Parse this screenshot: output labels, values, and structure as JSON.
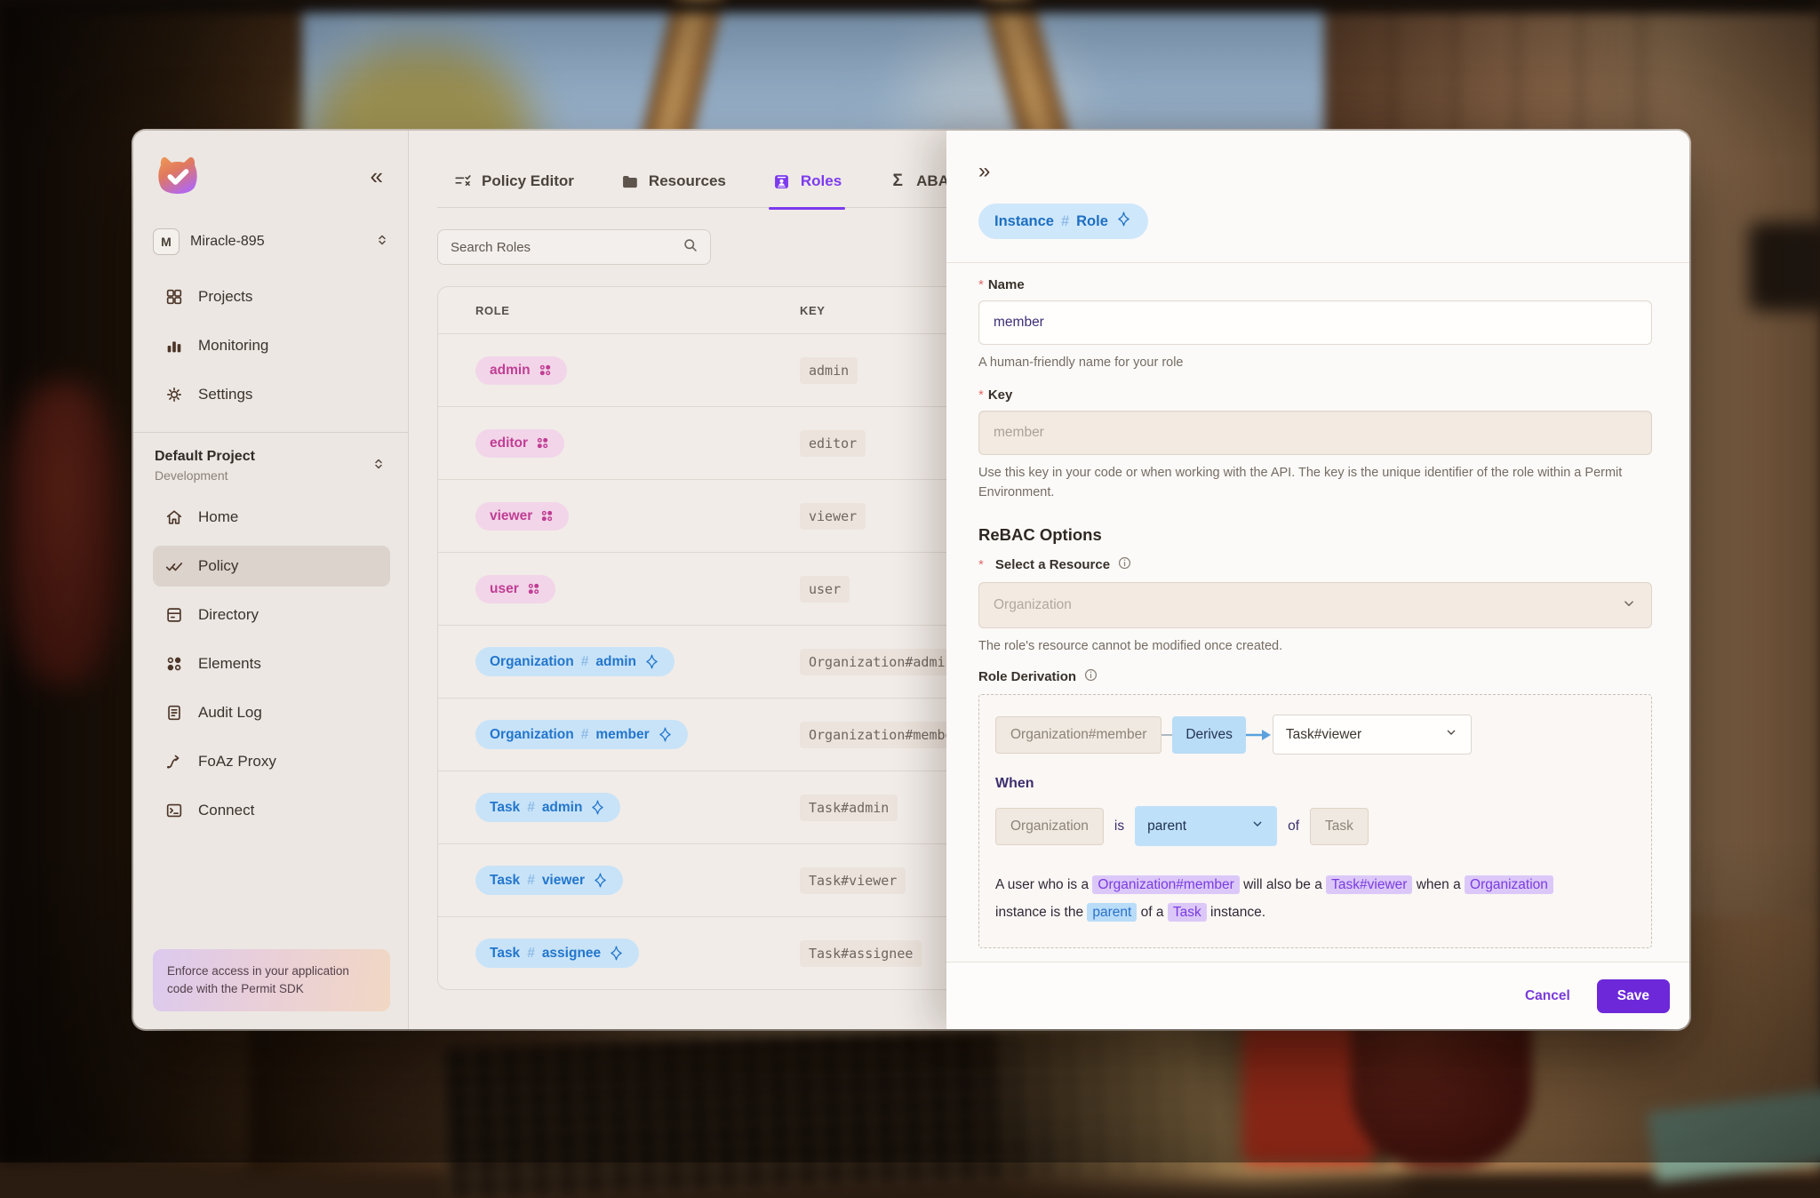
{
  "colors": {
    "accent_purple": "#7c3aed",
    "save_button": "#6d28d9",
    "pink_badge_bg": "#f2d5e8",
    "pink_badge_text": "#c03e95",
    "blue_badge_bg": "#c8e3f8",
    "blue_badge_text": "#2376cc",
    "derives_chip_bg": "#b9dcf7",
    "highlight_purple_bg": "#dcc8f8",
    "highlight_purple_text": "#7a3be0",
    "highlight_blue_bg": "#b9dcf8",
    "highlight_blue_text": "#2a72c8"
  },
  "sidebar": {
    "collapse_icon": "«",
    "workspace": {
      "initial": "M",
      "name": "Miracle-895"
    },
    "org_nav": [
      {
        "label": "Projects",
        "icon": "grid-icon"
      },
      {
        "label": "Monitoring",
        "icon": "bar-chart-icon"
      },
      {
        "label": "Settings",
        "icon": "gear-icon"
      }
    ],
    "project": {
      "name": "Default Project",
      "environment": "Development"
    },
    "project_nav": [
      {
        "label": "Home",
        "icon": "home-icon",
        "active": false
      },
      {
        "label": "Policy",
        "icon": "policy-icon",
        "active": true
      },
      {
        "label": "Directory",
        "icon": "directory-icon",
        "active": false
      },
      {
        "label": "Elements",
        "icon": "elements-icon",
        "active": false
      },
      {
        "label": "Audit Log",
        "icon": "audit-log-icon",
        "active": false
      },
      {
        "label": "FoAz Proxy",
        "icon": "foaz-proxy-icon",
        "active": false
      },
      {
        "label": "Connect",
        "icon": "connect-icon",
        "active": false
      }
    ],
    "sdk_banner": "Enforce access in your application code with the Permit SDK"
  },
  "main": {
    "tabs": [
      {
        "label": "Policy Editor",
        "icon": "policy-editor-icon",
        "active": false
      },
      {
        "label": "Resources",
        "icon": "folder-icon",
        "active": false
      },
      {
        "label": "Roles",
        "icon": "roles-icon",
        "active": true
      },
      {
        "label": "ABA",
        "icon": "sigma-icon",
        "active": false
      }
    ],
    "search_placeholder": "Search Roles",
    "table": {
      "columns": [
        "ROLE",
        "KEY"
      ],
      "rows": [
        {
          "role": "admin",
          "key": "admin",
          "variant": "pink"
        },
        {
          "role": "editor",
          "key": "editor",
          "variant": "pink"
        },
        {
          "role": "viewer",
          "key": "viewer",
          "variant": "pink"
        },
        {
          "role": "user",
          "key": "user",
          "variant": "pink"
        },
        {
          "role": "Organization#admin",
          "key": "Organization#admin",
          "variant": "blue"
        },
        {
          "role": "Organization#member",
          "key": "Organization#member",
          "variant": "blue"
        },
        {
          "role": "Task#admin",
          "key": "Task#admin",
          "variant": "blue"
        },
        {
          "role": "Task#viewer",
          "key": "Task#viewer",
          "variant": "blue"
        },
        {
          "role": "Task#assignee",
          "key": "Task#assignee",
          "variant": "blue"
        }
      ]
    }
  },
  "panel": {
    "expand_icon": "»",
    "type_badge": "Instance#Role",
    "name_field": {
      "label": "Name",
      "value": "member",
      "helper": "A human-friendly name for your role"
    },
    "key_field": {
      "label": "Key",
      "value": "member",
      "helper": "Use this key in your code or when working with the API. The key is the unique identifier of the role within a Permit Environment."
    },
    "rebac": {
      "heading": "ReBAC Options",
      "resource_label": "Select a Resource",
      "resource_value": "Organization",
      "resource_helper": "The role's resource cannot be modified once created.",
      "derivation_label": "Role Derivation",
      "derivation": {
        "source": "Organization#member",
        "verb": "Derives",
        "target": "Task#viewer",
        "when_label": "When",
        "condition": {
          "left": "Organization",
          "is": "is",
          "relation": "parent",
          "of": "of",
          "right": "Task"
        }
      },
      "summary": [
        {
          "text": "A user who is a ",
          "style": "plain"
        },
        {
          "text": "Organization#member",
          "style": "purple"
        },
        {
          "text": " will also be a ",
          "style": "plain"
        },
        {
          "text": "Task#viewer",
          "style": "purple"
        },
        {
          "text": " when a ",
          "style": "plain"
        },
        {
          "text": "Organization",
          "style": "purple"
        },
        {
          "text": " instance is the ",
          "style": "plain"
        },
        {
          "text": "parent",
          "style": "blue"
        },
        {
          "text": " of a ",
          "style": "plain"
        },
        {
          "text": "Task",
          "style": "purple"
        },
        {
          "text": " instance.",
          "style": "plain"
        }
      ]
    },
    "footer": {
      "cancel": "Cancel",
      "save": "Save"
    }
  }
}
